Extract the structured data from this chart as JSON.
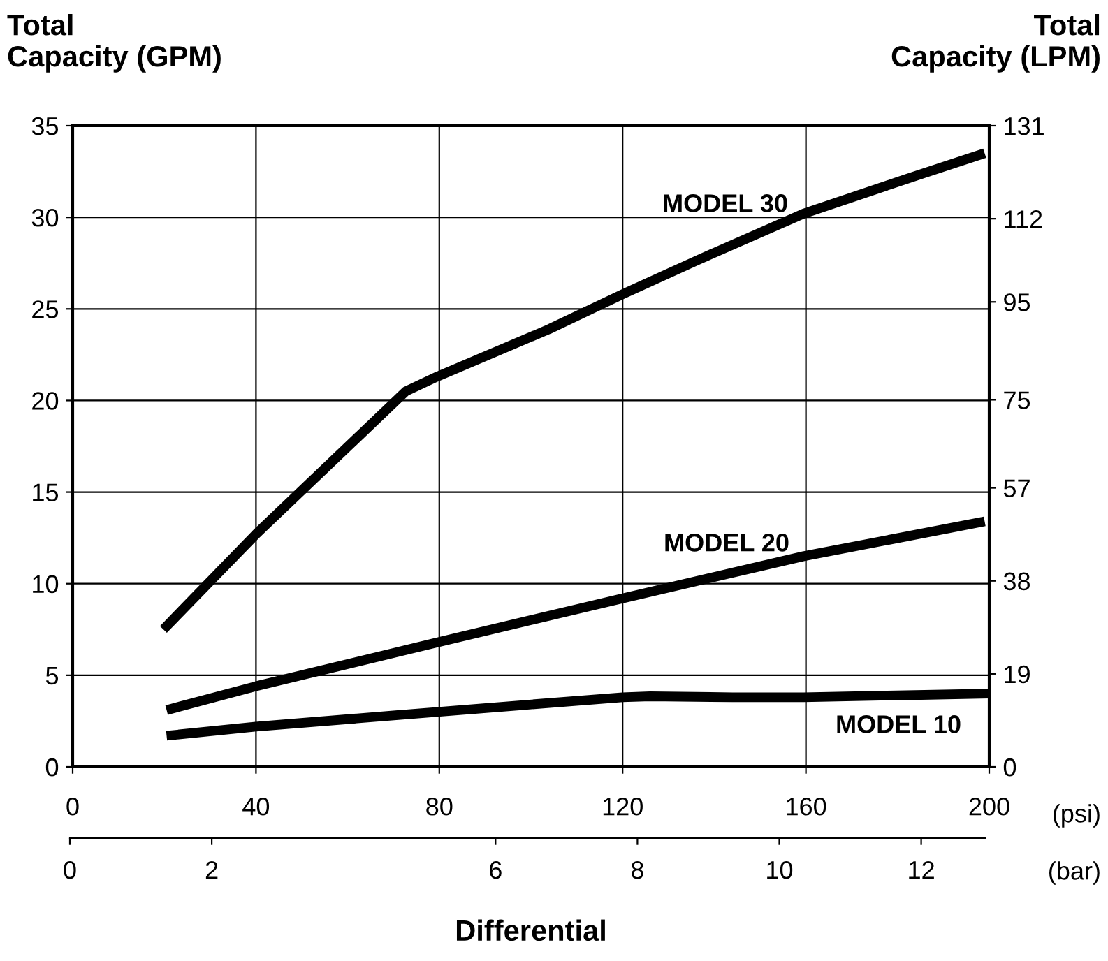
{
  "chart_data": {
    "type": "line",
    "ylabel": "Total\nCapacity (GPM)",
    "y2label": "Total\nCapacity (LPM)",
    "xlabel": "Differential",
    "x2label": "(bar)",
    "xlim": [
      0,
      200
    ],
    "xticks": [
      0,
      40,
      80,
      120,
      160,
      200
    ],
    "ylim": [
      0,
      35
    ],
    "yticks": [
      0,
      5,
      10,
      15,
      20,
      25,
      30,
      35
    ],
    "y2lim": [
      0,
      131
    ],
    "y2ticks": [
      0,
      19,
      38,
      57,
      75,
      95,
      112,
      131
    ],
    "x2lim": [
      0,
      12.9
    ],
    "x2ticks": [
      0,
      2,
      6,
      8,
      10,
      12
    ],
    "grid": true,
    "legend": false,
    "line_style": "solid",
    "marker": "none",
    "series": [
      {
        "color": "#000000",
        "x": [
          19.8,
          40,
          72.7,
          79.5,
          104,
          120,
          136.7,
          159.5,
          182,
          199
        ],
        "values": [
          7.5,
          12.7,
          20.5,
          21.3,
          23.9,
          25.8,
          27.7,
          30.2,
          32.1,
          33.5
        ]
      },
      {
        "color": "#000000",
        "x": [
          20.5,
          40,
          79.6,
          120,
          159.5,
          199
        ],
        "values": [
          3.1,
          4.4,
          6.8,
          9.2,
          11.5,
          13.4
        ]
      },
      {
        "color": "#000000",
        "x": [
          20.5,
          40,
          79.6,
          120,
          126,
          144,
          159.5,
          200
        ],
        "values": [
          1.7,
          2.2,
          3.0,
          3.8,
          3.85,
          3.8,
          3.8,
          4.0
        ]
      }
    ],
    "annotations": [
      "MODEL 30",
      "MODEL 20",
      "MODEL 10",
      "(psi)"
    ]
  }
}
